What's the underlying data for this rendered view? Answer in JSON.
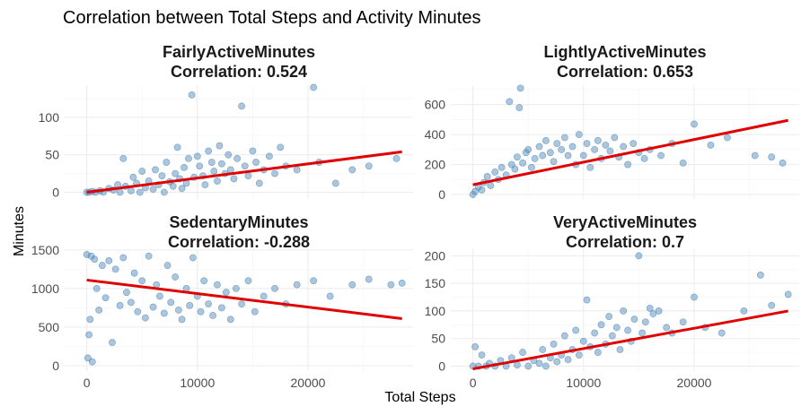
{
  "title": "Correlation between Total Steps and Activity Minutes",
  "chart_data": {
    "type": "scatter",
    "title": "Correlation between Total Steps and Activity Minutes",
    "xlabel": "Total Steps",
    "ylabel": "Minutes",
    "xlim": [
      -2000,
      29500
    ],
    "x_ticks": [
      0,
      10000,
      20000
    ],
    "grid": true,
    "point_color": "#4682b4",
    "fit_color": "#e00000",
    "panels": [
      {
        "name": "FairlyActiveMinutes",
        "correlation_label": "Correlation: 0.524",
        "ylim": [
          -9,
          143
        ],
        "y_ticks": [
          0,
          50,
          100
        ],
        "fit": [
          [
            0,
            0
          ],
          [
            28500,
            54
          ]
        ],
        "points": [
          [
            0,
            0
          ],
          [
            200,
            0
          ],
          [
            500,
            1
          ],
          [
            800,
            0
          ],
          [
            1200,
            2
          ],
          [
            1500,
            0
          ],
          [
            2000,
            5
          ],
          [
            2400,
            3
          ],
          [
            2800,
            10
          ],
          [
            3000,
            0
          ],
          [
            3300,
            45
          ],
          [
            3500,
            8
          ],
          [
            4000,
            2
          ],
          [
            4200,
            20
          ],
          [
            4500,
            12
          ],
          [
            4800,
            0
          ],
          [
            5000,
            28
          ],
          [
            5300,
            6
          ],
          [
            5600,
            15
          ],
          [
            6000,
            4
          ],
          [
            6200,
            30
          ],
          [
            6500,
            10
          ],
          [
            6800,
            22
          ],
          [
            7000,
            0
          ],
          [
            7200,
            40
          ],
          [
            7500,
            14
          ],
          [
            7800,
            8
          ],
          [
            8000,
            25
          ],
          [
            8200,
            60
          ],
          [
            8400,
            18
          ],
          [
            8600,
            5
          ],
          [
            8800,
            33
          ],
          [
            9000,
            12
          ],
          [
            9200,
            45
          ],
          [
            9500,
            130
          ],
          [
            9700,
            20
          ],
          [
            10000,
            48
          ],
          [
            10200,
            35
          ],
          [
            10500,
            22
          ],
          [
            10700,
            10
          ],
          [
            11000,
            55
          ],
          [
            11300,
            40
          ],
          [
            11500,
            28
          ],
          [
            11800,
            15
          ],
          [
            12000,
            62
          ],
          [
            12200,
            38
          ],
          [
            12500,
            25
          ],
          [
            12800,
            50
          ],
          [
            13000,
            30
          ],
          [
            13300,
            18
          ],
          [
            13600,
            45
          ],
          [
            14000,
            115
          ],
          [
            14300,
            35
          ],
          [
            14600,
            22
          ],
          [
            15000,
            55
          ],
          [
            15300,
            40
          ],
          [
            15600,
            12
          ],
          [
            16000,
            30
          ],
          [
            16500,
            48
          ],
          [
            17000,
            25
          ],
          [
            17500,
            60
          ],
          [
            18000,
            35
          ],
          [
            19000,
            30
          ],
          [
            20500,
            140
          ],
          [
            21000,
            40
          ],
          [
            22500,
            12
          ],
          [
            24000,
            30
          ],
          [
            25500,
            35
          ],
          [
            28000,
            45
          ]
        ]
      },
      {
        "name": "LightlyActiveMinutes",
        "correlation_label": "Correlation: 0.653",
        "ylim": [
          -30,
          730
        ],
        "y_ticks": [
          0,
          200,
          400,
          600
        ],
        "fit": [
          [
            0,
            65
          ],
          [
            28500,
            495
          ]
        ],
        "points": [
          [
            0,
            0
          ],
          [
            200,
            20
          ],
          [
            500,
            50
          ],
          [
            800,
            30
          ],
          [
            1000,
            80
          ],
          [
            1300,
            120
          ],
          [
            1600,
            60
          ],
          [
            2000,
            150
          ],
          [
            2300,
            100
          ],
          [
            2600,
            180
          ],
          [
            3000,
            130
          ],
          [
            3300,
            620
          ],
          [
            3500,
            200
          ],
          [
            3800,
            170
          ],
          [
            4000,
            250
          ],
          [
            4200,
            580
          ],
          [
            4300,
            710
          ],
          [
            4500,
            210
          ],
          [
            4800,
            280
          ],
          [
            5000,
            300
          ],
          [
            5300,
            180
          ],
          [
            5600,
            240
          ],
          [
            6000,
            320
          ],
          [
            6300,
            260
          ],
          [
            6600,
            360
          ],
          [
            7000,
            280
          ],
          [
            7300,
            220
          ],
          [
            7600,
            340
          ],
          [
            8000,
            300
          ],
          [
            8300,
            380
          ],
          [
            8600,
            260
          ],
          [
            9000,
            320
          ],
          [
            9300,
            200
          ],
          [
            9600,
            400
          ],
          [
            10000,
            260
          ],
          [
            10300,
            340
          ],
          [
            10600,
            180
          ],
          [
            11000,
            300
          ],
          [
            11300,
            360
          ],
          [
            11600,
            240
          ],
          [
            12000,
            330
          ],
          [
            12400,
            290
          ],
          [
            12800,
            380
          ],
          [
            13200,
            250
          ],
          [
            13600,
            320
          ],
          [
            14000,
            200
          ],
          [
            14500,
            340
          ],
          [
            15000,
            280
          ],
          [
            15500,
            240
          ],
          [
            16000,
            300
          ],
          [
            17000,
            260
          ],
          [
            18000,
            340
          ],
          [
            19000,
            210
          ],
          [
            20000,
            470
          ],
          [
            21500,
            330
          ],
          [
            23000,
            380
          ],
          [
            25500,
            260
          ],
          [
            27000,
            250
          ],
          [
            28000,
            210
          ]
        ]
      },
      {
        "name": "SedentaryMinutes",
        "correlation_label": "Correlation: -0.288",
        "ylim": [
          -70,
          1510
        ],
        "y_ticks": [
          0,
          500,
          1000,
          1500
        ],
        "fit": [
          [
            0,
            1110
          ],
          [
            28500,
            610
          ]
        ],
        "points": [
          [
            0,
            1440
          ],
          [
            100,
            100
          ],
          [
            200,
            400
          ],
          [
            300,
            600
          ],
          [
            400,
            1420
          ],
          [
            500,
            50
          ],
          [
            700,
            1380
          ],
          [
            900,
            1000
          ],
          [
            1100,
            720
          ],
          [
            1400,
            1300
          ],
          [
            1700,
            880
          ],
          [
            2000,
            1360
          ],
          [
            2300,
            300
          ],
          [
            2600,
            1250
          ],
          [
            3000,
            780
          ],
          [
            3300,
            1400
          ],
          [
            3600,
            950
          ],
          [
            4000,
            820
          ],
          [
            4300,
            1200
          ],
          [
            4600,
            700
          ],
          [
            5000,
            1100
          ],
          [
            5300,
            620
          ],
          [
            5600,
            1420
          ],
          [
            6000,
            760
          ],
          [
            6300,
            1050
          ],
          [
            6600,
            900
          ],
          [
            7000,
            680
          ],
          [
            7300,
            1300
          ],
          [
            7600,
            820
          ],
          [
            8000,
            1150
          ],
          [
            8300,
            720
          ],
          [
            8600,
            600
          ],
          [
            9000,
            1000
          ],
          [
            9300,
            780
          ],
          [
            9600,
            1400
          ],
          [
            10000,
            900
          ],
          [
            10300,
            700
          ],
          [
            10600,
            1100
          ],
          [
            11000,
            800
          ],
          [
            11400,
            650
          ],
          [
            11800,
            1050
          ],
          [
            12200,
            750
          ],
          [
            12600,
            950
          ],
          [
            13000,
            600
          ],
          [
            13500,
            1000
          ],
          [
            14000,
            800
          ],
          [
            14600,
            1100
          ],
          [
            15200,
            700
          ],
          [
            16000,
            900
          ],
          [
            17000,
            1000
          ],
          [
            18000,
            800
          ],
          [
            19000,
            1050
          ],
          [
            20500,
            1100
          ],
          [
            22000,
            900
          ],
          [
            24000,
            1050
          ],
          [
            25500,
            1120
          ],
          [
            27500,
            1050
          ],
          [
            28500,
            1070
          ]
        ]
      },
      {
        "name": "VeryActiveMinutes",
        "correlation_label": "Correlation: 0.7",
        "ylim": [
          -9,
          212
        ],
        "y_ticks": [
          0,
          50,
          100,
          150,
          200
        ],
        "fit": [
          [
            0,
            -5
          ],
          [
            28500,
            100
          ]
        ],
        "points": [
          [
            0,
            0
          ],
          [
            200,
            35
          ],
          [
            500,
            0
          ],
          [
            800,
            20
          ],
          [
            1200,
            0
          ],
          [
            1500,
            5
          ],
          [
            2000,
            0
          ],
          [
            2500,
            10
          ],
          [
            3000,
            0
          ],
          [
            3500,
            15
          ],
          [
            4000,
            2
          ],
          [
            4500,
            25
          ],
          [
            5000,
            0
          ],
          [
            5500,
            10
          ],
          [
            6000,
            5
          ],
          [
            6300,
            30
          ],
          [
            6600,
            0
          ],
          [
            7000,
            15
          ],
          [
            7300,
            40
          ],
          [
            7600,
            8
          ],
          [
            8000,
            20
          ],
          [
            8300,
            55
          ],
          [
            8600,
            12
          ],
          [
            9000,
            30
          ],
          [
            9300,
            65
          ],
          [
            9600,
            20
          ],
          [
            10000,
            45
          ],
          [
            10300,
            120
          ],
          [
            10600,
            35
          ],
          [
            11000,
            60
          ],
          [
            11300,
            25
          ],
          [
            11600,
            75
          ],
          [
            12000,
            40
          ],
          [
            12300,
            90
          ],
          [
            12600,
            55
          ],
          [
            13000,
            70
          ],
          [
            13300,
            30
          ],
          [
            13600,
            100
          ],
          [
            14000,
            65
          ],
          [
            14300,
            45
          ],
          [
            14600,
            85
          ],
          [
            15000,
            200
          ],
          [
            15300,
            60
          ],
          [
            15600,
            80
          ],
          [
            16000,
            105
          ],
          [
            16300,
            95
          ],
          [
            16800,
            100
          ],
          [
            17500,
            70
          ],
          [
            18000,
            60
          ],
          [
            19000,
            80
          ],
          [
            20000,
            125
          ],
          [
            21000,
            70
          ],
          [
            22500,
            60
          ],
          [
            24500,
            100
          ],
          [
            26000,
            165
          ],
          [
            27000,
            110
          ],
          [
            28500,
            130
          ]
        ]
      }
    ]
  }
}
